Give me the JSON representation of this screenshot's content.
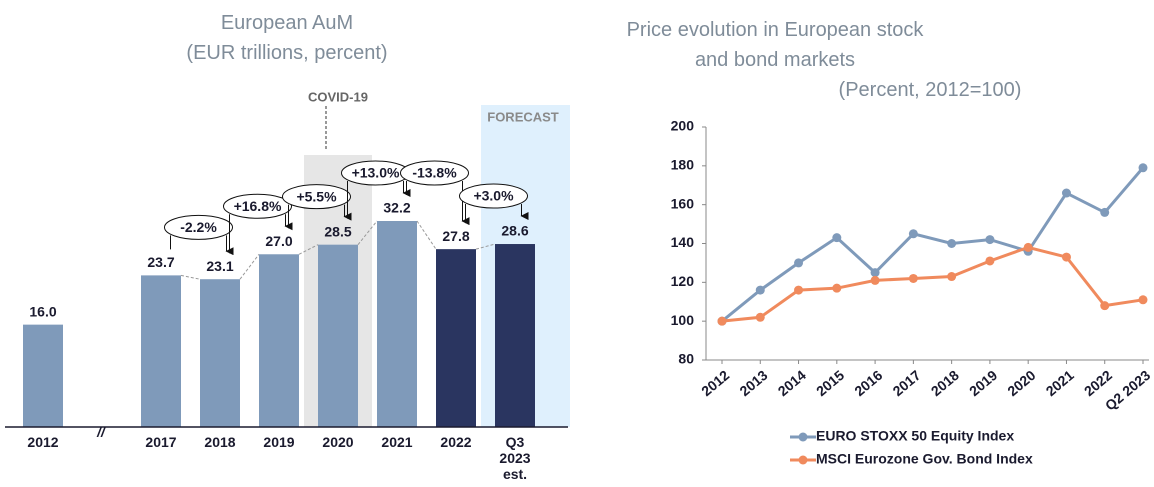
{
  "chart_data": [
    {
      "type": "bar",
      "title": "European AuM",
      "subtitle": "(EUR trillions, percent)",
      "categories": [
        "2012",
        "2017",
        "2018",
        "2019",
        "2020",
        "2021",
        "2022",
        "Q3 2023 est."
      ],
      "values": [
        16.0,
        23.7,
        23.1,
        27.0,
        28.5,
        32.2,
        27.8,
        28.6
      ],
      "value_labels": [
        "16.0",
        "23.7",
        "23.1",
        "27.0",
        "28.5",
        "32.2",
        "27.8",
        "28.6"
      ],
      "colors": [
        "#7f9aba",
        "#7f9aba",
        "#7f9aba",
        "#7f9aba",
        "#7f9aba",
        "#7f9aba",
        "#2a3560",
        "#2a3560"
      ],
      "changes": [
        null,
        null,
        "-2.2%",
        "+16.8%",
        "+5.5%",
        "+13.0%",
        "-13.8%",
        "+3.0%"
      ],
      "axis_break": "//",
      "highlights": [
        {
          "label": "COVID-19",
          "category": 4,
          "color": "#e6e6e6"
        },
        {
          "label": "FORECAST",
          "category": 7,
          "color": "#dff0fd"
        }
      ]
    },
    {
      "type": "line",
      "title": "Price evolution in European stock and bond markets",
      "subtitle": "(Percent, 2012=100)",
      "categories": [
        "2012",
        "2013",
        "2014",
        "2015",
        "2016",
        "2017",
        "2018",
        "2019",
        "2020",
        "2021",
        "2022",
        "Q2 2023"
      ],
      "series": [
        {
          "name": "EURO STOXX 50 Equity Index",
          "color": "#7f9aba",
          "values": [
            100,
            116,
            130,
            143,
            125,
            145,
            140,
            142,
            136,
            166,
            156,
            179
          ]
        },
        {
          "name": "MSCI Eurozone Gov. Bond Index",
          "color": "#f08a5d",
          "values": [
            100,
            102,
            116,
            117,
            121,
            122,
            123,
            131,
            138,
            133,
            108,
            111
          ]
        }
      ],
      "ylim": [
        80,
        200
      ],
      "yticks": [
        80,
        100,
        120,
        140,
        160,
        180,
        200
      ],
      "legend": "bottom"
    }
  ]
}
